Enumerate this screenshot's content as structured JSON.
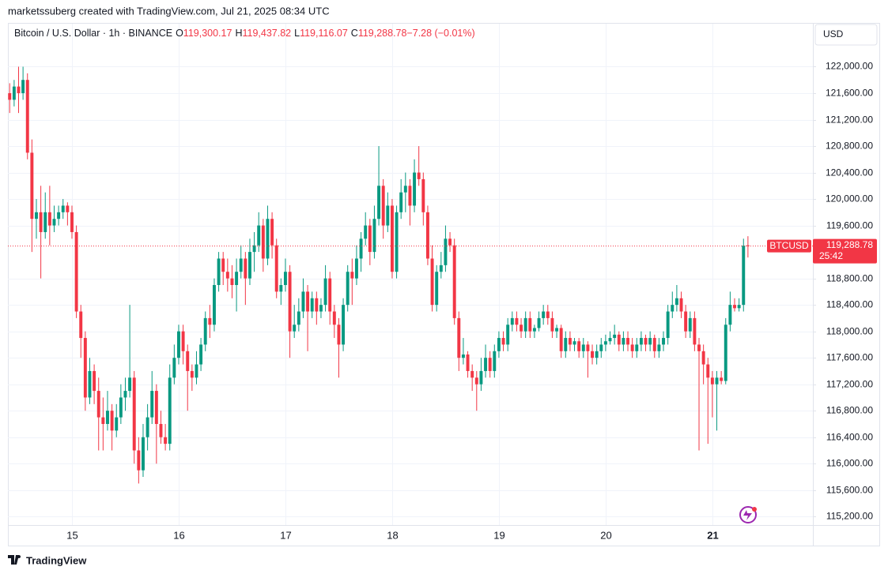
{
  "header": {
    "credit": "marketssuberg created with TradingView.com, Jul 21, 2025 08:34 UTC",
    "brand": "TradingView"
  },
  "chart_data": {
    "type": "candlestick",
    "symbol": "Bitcoin / U.S. Dollar · 1h · BINANCE",
    "legend": [
      {
        "key": "O",
        "value": "119,300.17"
      },
      {
        "key": "H",
        "value": "119,437.82"
      },
      {
        "key": "L",
        "value": "119,116.07"
      },
      {
        "key": "C",
        "value": "119,288.78"
      },
      {
        "key": "",
        "value": "−7.28 (−0.01%)"
      }
    ],
    "currency": "USD",
    "last_price": {
      "name": "BTCUSD",
      "label": "119,288.78",
      "countdown": "25:42"
    },
    "up_color": "#089981",
    "down_color": "#f23645",
    "xlim": [
      -0.4,
      180.6
    ],
    "xticks": [
      {
        "value": 14,
        "label": "15"
      },
      {
        "value": 38,
        "label": "16"
      },
      {
        "value": 62,
        "label": "17"
      },
      {
        "value": 86,
        "label": "18"
      },
      {
        "value": 110,
        "label": "19"
      },
      {
        "value": 134,
        "label": "20"
      },
      {
        "value": 158,
        "label": "21"
      }
    ],
    "ylim": [
      114750,
      122650
    ],
    "yticks": [
      {
        "value": 115200,
        "label": "115,200.00"
      },
      {
        "value": 115600,
        "label": "115,600.00"
      },
      {
        "value": 116000,
        "label": "116,000.00"
      },
      {
        "value": 116400,
        "label": "116,400.00"
      },
      {
        "value": 116800,
        "label": "116,800.00"
      },
      {
        "value": 117200,
        "label": "117,200.00"
      },
      {
        "value": 117600,
        "label": "117,600.00"
      },
      {
        "value": 118000,
        "label": "118,000.00"
      },
      {
        "value": 118400,
        "label": "118,400.00"
      },
      {
        "value": 118800,
        "label": "118,800.00"
      },
      {
        "value": 119600,
        "label": "119,600.00"
      },
      {
        "value": 120000,
        "label": "120,000.00"
      },
      {
        "value": 120400,
        "label": "120,400.00"
      },
      {
        "value": 120800,
        "label": "120,800.00"
      },
      {
        "value": 121200,
        "label": "121,200.00"
      },
      {
        "value": 121600,
        "label": "121,600.00"
      },
      {
        "value": 122000,
        "label": "122,000.00"
      }
    ],
    "grid": true,
    "candles": [
      [
        121600,
        121750,
        121300,
        121500
      ],
      [
        121500,
        121800,
        121400,
        121700
      ],
      [
        121700,
        122000,
        121300,
        121600
      ],
      [
        121600,
        122000,
        121500,
        121800
      ],
      [
        121800,
        121900,
        120600,
        120700
      ],
      [
        120700,
        120900,
        119200,
        119700
      ],
      [
        119700,
        120000,
        119400,
        119800
      ],
      [
        119800,
        120200,
        118800,
        119500
      ],
      [
        119500,
        120100,
        119400,
        119800
      ],
      [
        119800,
        120200,
        119300,
        119600
      ],
      [
        119600,
        119900,
        119500,
        119700
      ],
      [
        119700,
        119900,
        119600,
        119800
      ],
      [
        119800,
        120000,
        119700,
        119900
      ],
      [
        119900,
        119950,
        119600,
        119800
      ],
      [
        119800,
        119900,
        119400,
        119500
      ],
      [
        119500,
        119600,
        118200,
        118300
      ],
      [
        118300,
        118400,
        117600,
        117900
      ],
      [
        117900,
        118000,
        116800,
        117000
      ],
      [
        117000,
        117600,
        116900,
        117400
      ],
      [
        117400,
        117500,
        116900,
        117100
      ],
      [
        117100,
        117300,
        116200,
        116700
      ],
      [
        116700,
        117000,
        116200,
        116600
      ],
      [
        116600,
        117100,
        116500,
        116800
      ],
      [
        116800,
        116900,
        116200,
        116500
      ],
      [
        116500,
        116900,
        116400,
        116700
      ],
      [
        116700,
        117200,
        116600,
        117000
      ],
      [
        117000,
        117300,
        116800,
        117100
      ],
      [
        117100,
        118400,
        117000,
        117300
      ],
      [
        117300,
        117400,
        116000,
        116200
      ],
      [
        116200,
        116400,
        115700,
        115900
      ],
      [
        115900,
        116600,
        115800,
        116400
      ],
      [
        116400,
        116900,
        116200,
        116700
      ],
      [
        116700,
        117400,
        116600,
        117100
      ],
      [
        117100,
        117200,
        116000,
        116600
      ],
      [
        116600,
        116800,
        116300,
        116400
      ],
      [
        116400,
        116600,
        116200,
        116300
      ],
      [
        116300,
        117500,
        116200,
        117300
      ],
      [
        117300,
        117800,
        117200,
        117600
      ],
      [
        117600,
        118100,
        117500,
        118000
      ],
      [
        118000,
        118100,
        117500,
        117700
      ],
      [
        117700,
        117800,
        116800,
        117400
      ],
      [
        117400,
        117500,
        117100,
        117300
      ],
      [
        117300,
        117700,
        117200,
        117500
      ],
      [
        117500,
        117900,
        117400,
        117800
      ],
      [
        117800,
        118300,
        117700,
        118200
      ],
      [
        118200,
        118400,
        117900,
        118100
      ],
      [
        118100,
        118800,
        118000,
        118700
      ],
      [
        118700,
        119200,
        118600,
        119100
      ],
      [
        119100,
        119200,
        118700,
        118900
      ],
      [
        118900,
        119100,
        118600,
        118800
      ],
      [
        118800,
        119000,
        118500,
        118700
      ],
      [
        118700,
        119100,
        118300,
        118900
      ],
      [
        118900,
        119300,
        118800,
        119100
      ],
      [
        119100,
        119200,
        118400,
        118800
      ],
      [
        118800,
        119400,
        118700,
        119200
      ],
      [
        119200,
        119500,
        118900,
        119300
      ],
      [
        119300,
        119800,
        119200,
        119600
      ],
      [
        119600,
        119700,
        118900,
        119100
      ],
      [
        119100,
        119900,
        119000,
        119700
      ],
      [
        119700,
        119800,
        119100,
        119300
      ],
      [
        119300,
        119400,
        118500,
        118600
      ],
      [
        118600,
        118800,
        118400,
        118700
      ],
      [
        118700,
        119100,
        118600,
        118900
      ],
      [
        118900,
        119000,
        117600,
        118000
      ],
      [
        118000,
        118400,
        117900,
        118100
      ],
      [
        118100,
        118500,
        118000,
        118300
      ],
      [
        118300,
        118800,
        118200,
        118600
      ],
      [
        118600,
        118700,
        117700,
        118300
      ],
      [
        118300,
        118600,
        118200,
        118500
      ],
      [
        118500,
        118600,
        118100,
        118300
      ],
      [
        118300,
        118500,
        118200,
        118400
      ],
      [
        118400,
        119000,
        118300,
        118800
      ],
      [
        118800,
        118900,
        118100,
        118300
      ],
      [
        118300,
        118400,
        117900,
        118100
      ],
      [
        118100,
        118200,
        117300,
        117800
      ],
      [
        117800,
        118500,
        117700,
        118400
      ],
      [
        118400,
        119000,
        118300,
        118900
      ],
      [
        118900,
        119100,
        118400,
        118800
      ],
      [
        118800,
        119300,
        118700,
        119100
      ],
      [
        119100,
        119500,
        118900,
        119400
      ],
      [
        119400,
        119800,
        119300,
        119600
      ],
      [
        119600,
        119700,
        119000,
        119200
      ],
      [
        119200,
        119900,
        119100,
        119700
      ],
      [
        119700,
        120800,
        119600,
        120200
      ],
      [
        120200,
        120300,
        119400,
        119600
      ],
      [
        119600,
        120100,
        119500,
        119900
      ],
      [
        119900,
        120000,
        118800,
        118900
      ],
      [
        118900,
        119900,
        118800,
        119800
      ],
      [
        119800,
        120300,
        119700,
        120100
      ],
      [
        120100,
        120400,
        119800,
        120200
      ],
      [
        120200,
        120300,
        119600,
        119900
      ],
      [
        119900,
        120600,
        119800,
        120400
      ],
      [
        120400,
        120800,
        120200,
        120300
      ],
      [
        120300,
        120400,
        119600,
        119800
      ],
      [
        119800,
        119900,
        119000,
        119100
      ],
      [
        119100,
        119300,
        118300,
        118400
      ],
      [
        118400,
        119000,
        118300,
        118900
      ],
      [
        118900,
        119200,
        118800,
        119000
      ],
      [
        119000,
        119600,
        118900,
        119400
      ],
      [
        119400,
        119500,
        119200,
        119300
      ],
      [
        119300,
        119400,
        118100,
        118200
      ],
      [
        118200,
        118300,
        117400,
        117600
      ],
      [
        117600,
        117900,
        117500,
        117650
      ],
      [
        117650,
        117700,
        117300,
        117400
      ],
      [
        117400,
        117500,
        117100,
        117300
      ],
      [
        117300,
        117400,
        116800,
        117200
      ],
      [
        117200,
        117600,
        117100,
        117400
      ],
      [
        117400,
        117800,
        117300,
        117600
      ],
      [
        117600,
        117700,
        117300,
        117400
      ],
      [
        117400,
        117800,
        117300,
        117700
      ],
      [
        117700,
        118000,
        117600,
        117900
      ],
      [
        117900,
        118000,
        117700,
        117800
      ],
      [
        117800,
        118200,
        117700,
        118100
      ],
      [
        118100,
        118300,
        118000,
        118200
      ],
      [
        118200,
        118300,
        118000,
        118100
      ],
      [
        118100,
        118200,
        117900,
        118000
      ],
      [
        118000,
        118300,
        117900,
        118200
      ],
      [
        118200,
        118300,
        117900,
        118000
      ],
      [
        118000,
        118100,
        117900,
        118050
      ],
      [
        118050,
        118300,
        118000,
        118200
      ],
      [
        118200,
        118400,
        118100,
        118300
      ],
      [
        118300,
        118400,
        118100,
        118200
      ],
      [
        118200,
        118300,
        117900,
        118000
      ],
      [
        118000,
        118100,
        117900,
        118050
      ],
      [
        118050,
        118100,
        117600,
        117700
      ],
      [
        117700,
        118000,
        117600,
        117900
      ],
      [
        117900,
        118000,
        117700,
        117800
      ],
      [
        117800,
        117900,
        117700,
        117850
      ],
      [
        117850,
        117900,
        117600,
        117700
      ],
      [
        117700,
        117900,
        117600,
        117800
      ],
      [
        117800,
        117850,
        117300,
        117700
      ],
      [
        117700,
        117800,
        117500,
        117600
      ],
      [
        117600,
        117800,
        117500,
        117700
      ],
      [
        117700,
        117900,
        117600,
        117800
      ],
      [
        117800,
        117950,
        117700,
        117850
      ],
      [
        117850,
        118000,
        117800,
        117900
      ],
      [
        117900,
        118100,
        117800,
        117950
      ],
      [
        117950,
        118000,
        117700,
        117800
      ],
      [
        117800,
        118000,
        117700,
        117900
      ],
      [
        117900,
        118000,
        117700,
        117800
      ],
      [
        117800,
        117900,
        117600,
        117700
      ],
      [
        117700,
        117900,
        117600,
        117800
      ],
      [
        117800,
        118000,
        117700,
        117900
      ],
      [
        117900,
        117950,
        117700,
        117800
      ],
      [
        117800,
        118000,
        117700,
        117900
      ],
      [
        117900,
        117950,
        117600,
        117700
      ],
      [
        117700,
        117900,
        117600,
        117800
      ],
      [
        117800,
        118000,
        117700,
        117900
      ],
      [
        117900,
        118400,
        117800,
        118300
      ],
      [
        118300,
        118600,
        118200,
        118400
      ],
      [
        118400,
        118700,
        118300,
        118500
      ],
      [
        118500,
        118600,
        118200,
        118300
      ],
      [
        118300,
        118400,
        117900,
        118000
      ],
      [
        118000,
        118300,
        117900,
        118200
      ],
      [
        118200,
        118300,
        117700,
        117800
      ],
      [
        117800,
        117900,
        116200,
        117700
      ],
      [
        117700,
        117800,
        117200,
        117500
      ],
      [
        117500,
        117600,
        116300,
        117300
      ],
      [
        117300,
        117400,
        116700,
        117200
      ],
      [
        117200,
        117400,
        116500,
        117300
      ],
      [
        117300,
        117400,
        117200,
        117250
      ],
      [
        117250,
        118200,
        117200,
        118100
      ],
      [
        118100,
        118600,
        118000,
        118400
      ],
      [
        118400,
        118500,
        118300,
        118350
      ],
      [
        118350,
        118500,
        118300,
        118400
      ],
      [
        118400,
        119400,
        118300,
        119296.06
      ],
      [
        119300.17,
        119437.82,
        119116.07,
        119288.78
      ]
    ]
  }
}
